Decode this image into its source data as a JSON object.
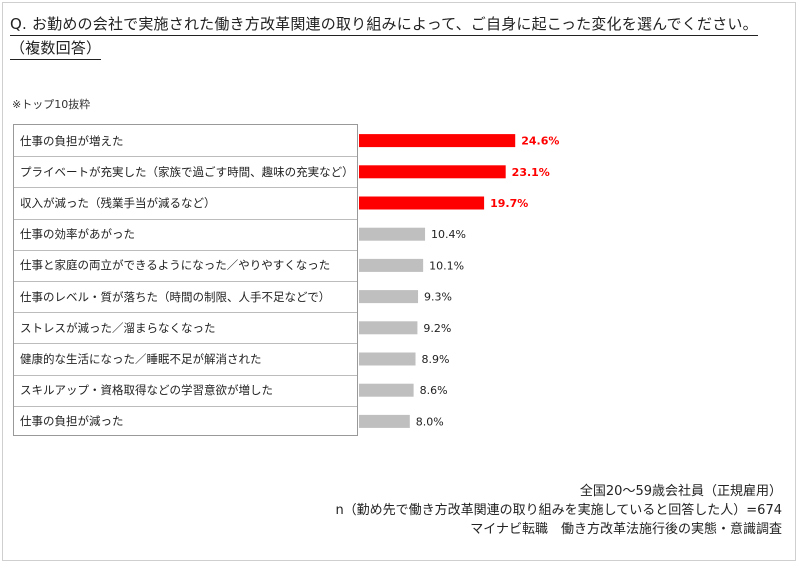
{
  "header": {
    "question_line1": "Q. お勤めの会社で実施された働き方改革関連の取り組みによって、ご自身に起こった変化を選んでください。",
    "question_line2": "（複数回答）",
    "note": "※トップ10抜粋"
  },
  "chart_data": {
    "type": "bar",
    "orientation": "horizontal",
    "categories": [
      "仕事の負担が増えた",
      "プライベートが充実した（家族で過ごす時間、趣味の充実など）",
      "収入が減った（残業手当が減るなど）",
      "仕事の効率があがった",
      "仕事と家庭の両立ができるようになった／やりやすくなった",
      "仕事のレベル・質が落ちた（時間の制限、人手不足などで）",
      "ストレスが減った／溜まらなくなった",
      "健康的な生活になった／睡眠不足が解消された",
      "スキルアップ・資格取得などの学習意欲が増した",
      "仕事の負担が減った"
    ],
    "values": [
      24.6,
      23.1,
      19.7,
      10.4,
      10.1,
      9.3,
      9.2,
      8.9,
      8.6,
      8.0
    ],
    "value_labels": [
      "24.6%",
      "23.1%",
      "19.7%",
      "10.4%",
      "10.1%",
      "9.3%",
      "9.2%",
      "8.9%",
      "8.6%",
      "8.0%"
    ],
    "highlight_count": 3,
    "colors": {
      "highlight": "#ff0000",
      "normal": "#bfbfbf",
      "highlight_label": "#ff0000",
      "normal_label": "#222222"
    }
  },
  "source": {
    "line1": "全国20～59歳会社員（正規雇用）",
    "line2": "n（勤め先で働き方改革関連の取り組みを実施していると回答した人）=674",
    "line3": "マイナビ転職　働き方改革法施行後の実態・意識調査"
  }
}
